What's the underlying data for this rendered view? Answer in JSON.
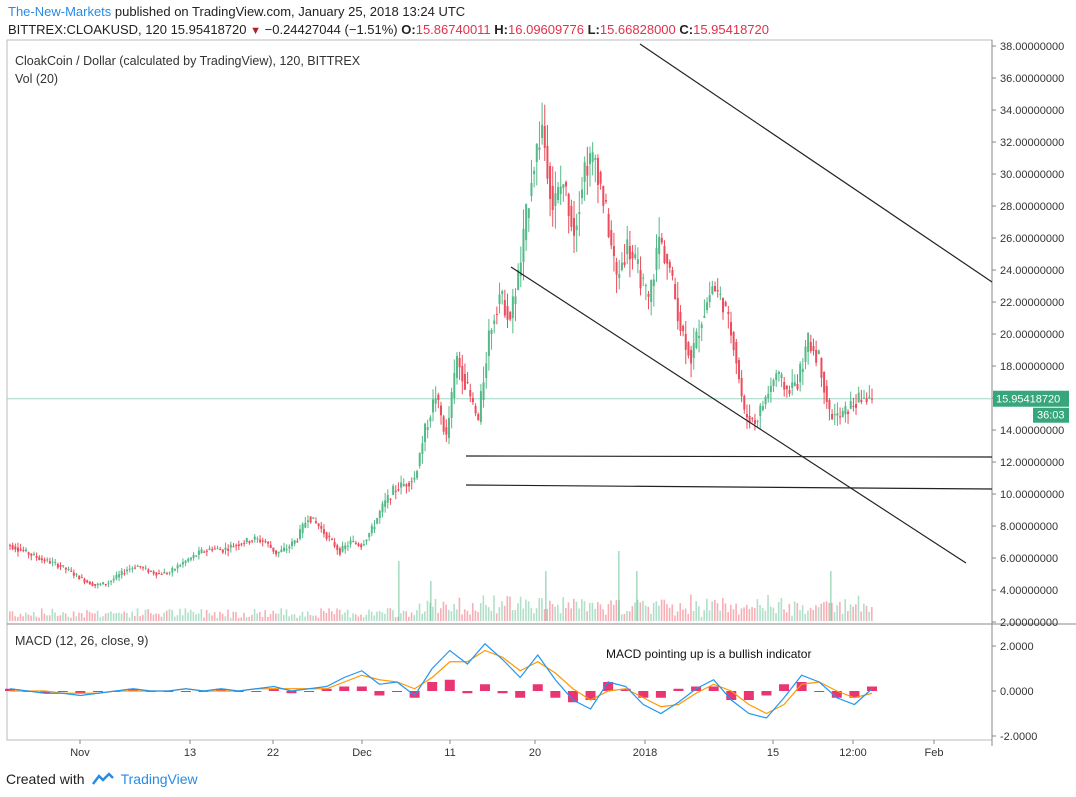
{
  "header": {
    "author": "The-New-Markets",
    "published": "published on TradingView.com, January 25, 2018 13:24 UTC",
    "symbol": "BITTREX:CLOAKUSD, 120",
    "last": "15.95418720",
    "change": "−0.24427044 (−1.51%)",
    "o_label": "O:",
    "o_value": "15.86740011",
    "h_label": "H:",
    "h_value": "16.09609776",
    "l_label": "L:",
    "l_value": "15.66828000",
    "c_label": "C:",
    "c_value": "15.95418720"
  },
  "pane_title": "CloakCoin / Dollar (calculated by TradingView), 120, BITTREX",
  "vol_label": "Vol (20)",
  "macd_label": "MACD (12, 26, close, 9)",
  "annotation": "MACD pointing up is a bullish indicator",
  "price_tag": "15.95418720",
  "time_tag": "36:03",
  "footer": {
    "created": "Created with",
    "brand": "TradingView"
  },
  "colors": {
    "up": "#53b987",
    "down": "#eb4d5c",
    "macd": "#2196f3",
    "signal": "#ff9800",
    "hist_pos": "#e91e63",
    "hist_neg": "#e91e63",
    "tag_bg": "#37a67c"
  },
  "chart_data": [
    {
      "type": "candlestick",
      "title": "CloakCoin / Dollar (calculated by TradingView), 120, BITTREX",
      "y_ticks": [
        "38.00000000",
        "36.00000000",
        "34.00000000",
        "32.00000000",
        "30.00000000",
        "28.00000000",
        "26.00000000",
        "24.00000000",
        "22.00000000",
        "20.00000000",
        "18.00000000",
        "16.00000000",
        "14.00000000",
        "12.00000000",
        "10.00000000",
        "8.00000000",
        "6.00000000",
        "4.00000000",
        "2.00000000"
      ],
      "ylim": [
        2,
        38
      ],
      "x_ticks": [
        "Nov",
        "13",
        "22",
        "Dec",
        "11",
        "20",
        "2018",
        "15",
        "12:00",
        "Feb"
      ],
      "series": [
        {
          "values_close_approx": [
            6.8,
            6.5,
            6.2,
            5.9,
            5.7,
            5.4,
            5.0,
            4.6,
            4.3,
            4.4,
            4.8,
            5.3,
            5.5,
            5.2,
            5.0,
            5.1,
            5.6,
            6.0,
            6.4,
            6.6,
            6.5,
            6.8,
            7.0,
            7.2,
            7.0,
            6.3,
            6.6,
            7.2,
            8.6,
            8.0,
            7.2,
            6.4,
            7.0,
            6.8,
            7.8,
            9.2,
            10.2,
            10.6,
            11.0,
            14.0,
            16.2,
            13.5,
            18.5,
            16.5,
            14.5,
            20.0,
            22.5,
            21.0,
            24.5,
            30.0,
            33.0,
            28.0,
            29.5,
            26.5,
            30.5,
            31.0,
            27.5,
            23.5,
            25.5,
            24.0,
            22.0,
            26.0,
            24.0,
            20.5,
            18.5,
            21.0,
            23.0,
            22.0,
            19.5,
            15.0,
            14.5,
            16.0,
            17.5,
            16.5,
            17.0,
            19.5,
            18.5,
            15.0,
            14.8,
            15.5,
            16.0,
            15.95
          ]
        }
      ],
      "trendlines": [
        {
          "from": [
            "late Dec",
            38.5
          ],
          "to": [
            "Feb",
            23.2
          ]
        },
        {
          "from": [
            "Dec 18",
            24.2
          ],
          "to": [
            "Feb",
            5.6
          ]
        },
        {
          "from": [
            "Dec 13",
            12.3
          ],
          "to": [
            "Feb",
            12.2
          ]
        },
        {
          "from": [
            "Dec 13",
            10.5
          ],
          "to": [
            "Feb",
            10.2
          ]
        }
      ]
    },
    {
      "type": "line",
      "title": "MACD (12, 26, close, 9)",
      "y_ticks": [
        "2.0000",
        "0.0000",
        "-2.0000"
      ],
      "ylim": [
        -2.2,
        2.6
      ],
      "series": [
        {
          "name": "MACD",
          "values": [
            0.1,
            0.0,
            -0.1,
            -0.1,
            -0.2,
            -0.1,
            0.0,
            0.1,
            0.0,
            0.0,
            0.1,
            0.0,
            0.1,
            0.0,
            0.1,
            0.2,
            0.0,
            0.1,
            0.2,
            0.6,
            0.9,
            0.3,
            0.4,
            -0.2,
            1.0,
            1.8,
            1.2,
            2.1,
            1.4,
            0.6,
            1.6,
            0.5,
            -0.4,
            -0.8,
            0.4,
            0.2,
            -0.6,
            -1.0,
            -0.5,
            0.1,
            0.5,
            -0.4,
            -1.0,
            -1.2,
            -0.3,
            0.7,
            0.4,
            -0.3,
            -0.6,
            0.1
          ]
        },
        {
          "name": "Signal",
          "values": [
            0.0,
            0.0,
            0.0,
            -0.1,
            -0.1,
            -0.1,
            0.0,
            0.0,
            0.0,
            0.0,
            0.1,
            0.0,
            0.0,
            0.0,
            0.1,
            0.1,
            0.1,
            0.1,
            0.1,
            0.4,
            0.7,
            0.5,
            0.4,
            0.1,
            0.6,
            1.3,
            1.3,
            1.8,
            1.5,
            0.9,
            1.3,
            0.8,
            0.1,
            -0.4,
            0.0,
            0.1,
            -0.3,
            -0.7,
            -0.6,
            -0.1,
            0.3,
            0.0,
            -0.6,
            -1.0,
            -0.6,
            0.3,
            0.4,
            0.0,
            -0.3,
            -0.1
          ]
        }
      ]
    }
  ]
}
